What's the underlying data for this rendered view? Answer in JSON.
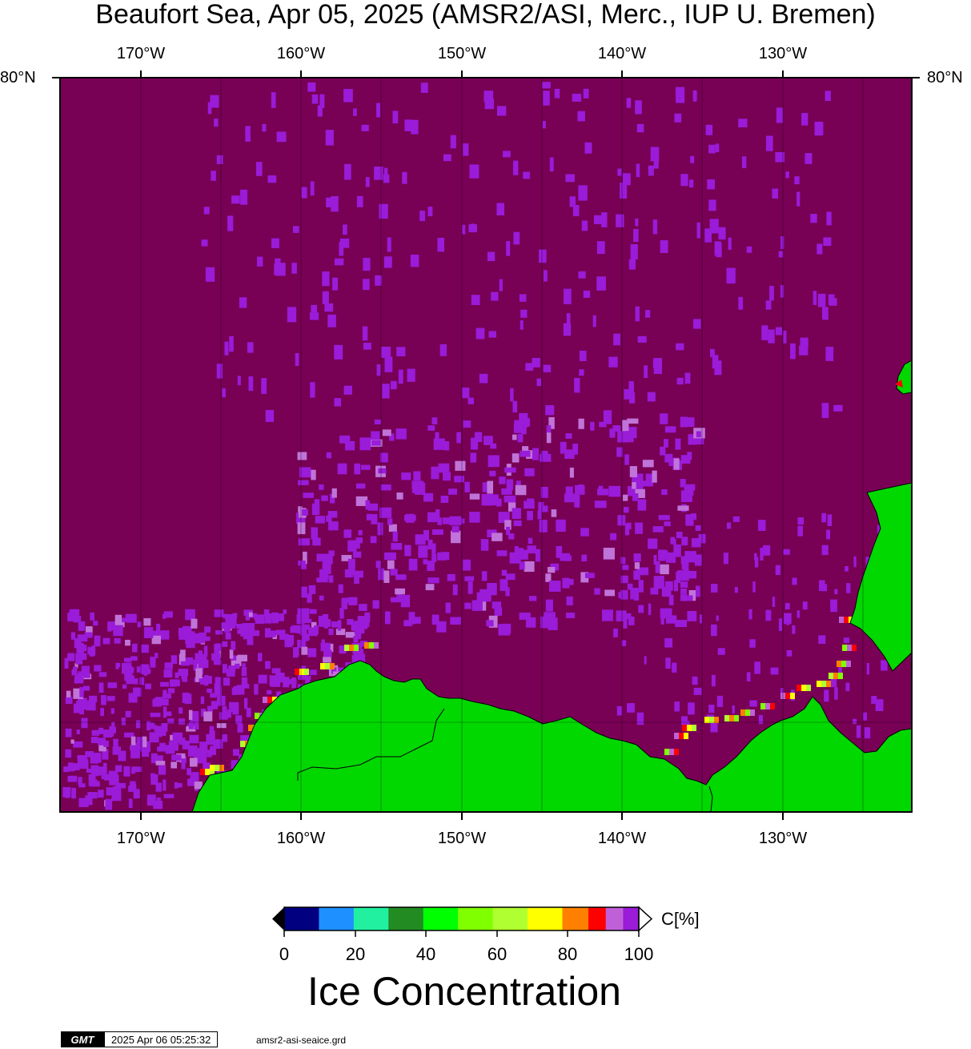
{
  "title": "Beaufort Sea, Apr 05, 2025 (AMSR2/ASI, Merc., IUP U. Bremen)",
  "map": {
    "lon_labels": [
      "170°W",
      "160°W",
      "150°W",
      "140°W",
      "130°W"
    ],
    "lat_labels": [
      "80°N",
      "80°N"
    ],
    "colors": {
      "ice_full": "#780055",
      "ice_high": "#9a1bd8",
      "ice_mid": "#c074d9",
      "land": "#00d800",
      "frame": "#000000"
    }
  },
  "colorbar": {
    "title": "Ice Concentration",
    "unit": "C[%]",
    "tick_labels": [
      "0",
      "20",
      "40",
      "60",
      "80",
      "100"
    ],
    "colors": [
      "#000080",
      "#1e90ff",
      "#20f0a0",
      "#228b22",
      "#00ff00",
      "#80ff00",
      "#b0ff30",
      "#ffff00",
      "#ff8000",
      "#ff0000",
      "#c060d8",
      "#9a1bd8"
    ]
  },
  "footer": {
    "logo": "GMT",
    "date": "2025 Apr 06 05:25:32",
    "grid_file": "amsr2-asi-seaice.grd"
  }
}
